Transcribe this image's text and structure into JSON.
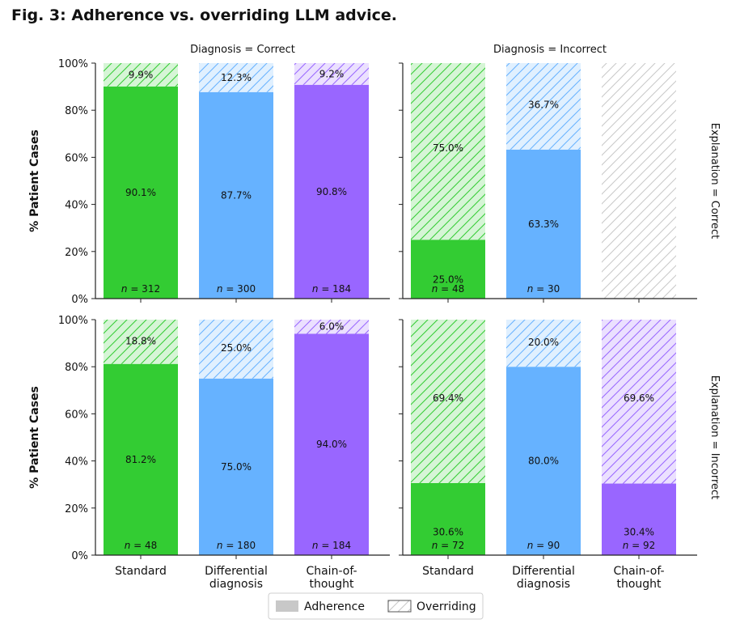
{
  "figure_title": "Fig. 3: Adherence vs. overriding LLM advice.",
  "legend": {
    "adherence": "Adherence",
    "overriding": "Overriding"
  },
  "colors": {
    "standard": "#33cc33",
    "differential": "#66b2ff",
    "cot": "#9966ff",
    "standard_light": "#d6f5d6",
    "differential_light": "#e0f0ff",
    "cot_light": "#ebe0ff",
    "empty_hatch": "#c8c8c8"
  },
  "chart_data": {
    "type": "bar",
    "stacked": true,
    "categories": [
      "Standard",
      "Differential\ndiagnosis",
      "Chain-of-\nthought"
    ],
    "category_color_keys": [
      "standard",
      "differential",
      "cot"
    ],
    "ylabel": "% Patient Cases",
    "ylim": [
      0,
      100
    ],
    "yticks": [
      "0%",
      "20%",
      "40%",
      "60%",
      "80%",
      "100%"
    ],
    "grid": false,
    "legend_position": "bottom-center",
    "column_titles": [
      "Diagnosis = Correct",
      "Diagnosis = Incorrect"
    ],
    "row_titles": [
      "Explanation = Correct",
      "Explanation = Incorrect"
    ],
    "panels": [
      {
        "diagnosis": "Correct",
        "explanation": "Correct",
        "adherence": [
          90.1,
          87.7,
          90.8
        ],
        "overriding": [
          9.9,
          12.3,
          9.2
        ],
        "adherence_labels": [
          "90.1%",
          "87.7%",
          "90.8%"
        ],
        "overriding_labels": [
          "9.9%",
          "12.3%",
          "9.2%"
        ],
        "n": [
          "312",
          "300",
          "184"
        ]
      },
      {
        "diagnosis": "Incorrect",
        "explanation": "Correct",
        "adherence": [
          25.0,
          63.3,
          null
        ],
        "overriding": [
          75.0,
          36.7,
          null
        ],
        "adherence_labels": [
          "25.0%",
          "63.3%",
          ""
        ],
        "overriding_labels": [
          "75.0%",
          "36.7%",
          ""
        ],
        "n": [
          "48",
          "30",
          ""
        ]
      },
      {
        "diagnosis": "Correct",
        "explanation": "Incorrect",
        "adherence": [
          81.2,
          75.0,
          94.0
        ],
        "overriding": [
          18.8,
          25.0,
          6.0
        ],
        "adherence_labels": [
          "81.2%",
          "75.0%",
          "94.0%"
        ],
        "overriding_labels": [
          "18.8%",
          "25.0%",
          "6.0%"
        ],
        "n": [
          "48",
          "180",
          "184"
        ]
      },
      {
        "diagnosis": "Incorrect",
        "explanation": "Incorrect",
        "adherence": [
          30.6,
          80.0,
          30.4
        ],
        "overriding": [
          69.4,
          20.0,
          69.6
        ],
        "adherence_labels": [
          "30.6%",
          "80.0%",
          "30.4%"
        ],
        "overriding_labels": [
          "69.4%",
          "20.0%",
          "69.6%"
        ],
        "n": [
          "72",
          "90",
          "92"
        ]
      }
    ]
  }
}
